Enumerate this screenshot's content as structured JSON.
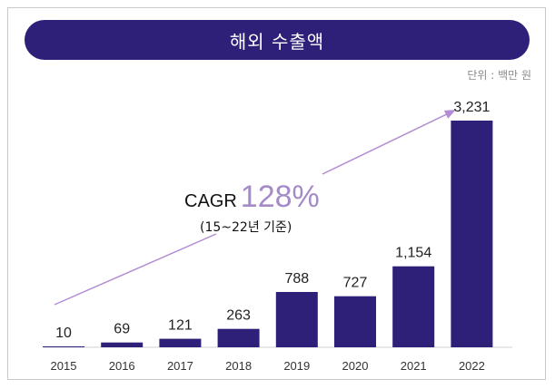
{
  "title": "해외 수출액",
  "unit_label": "단위 : 백만 원",
  "annotation": {
    "label": "CAGR",
    "rate": "128%",
    "note": "(15~22년 기준)"
  },
  "colors": {
    "bar": "#2e1f78",
    "title_bg": "#2e1f78",
    "rate": "#a58ac8",
    "arrow": "#b28bd3"
  },
  "chart_data": {
    "type": "bar",
    "categories": [
      "2015",
      "2016",
      "2017",
      "2018",
      "2019",
      "2020",
      "2021",
      "2022"
    ],
    "values": [
      10,
      69,
      121,
      263,
      788,
      727,
      1154,
      3231
    ],
    "value_labels": [
      "10",
      "69",
      "121",
      "263",
      "788",
      "727",
      "1,154",
      "3,231"
    ],
    "ylim": [
      0,
      3231
    ],
    "grid": false,
    "legend": "none"
  }
}
